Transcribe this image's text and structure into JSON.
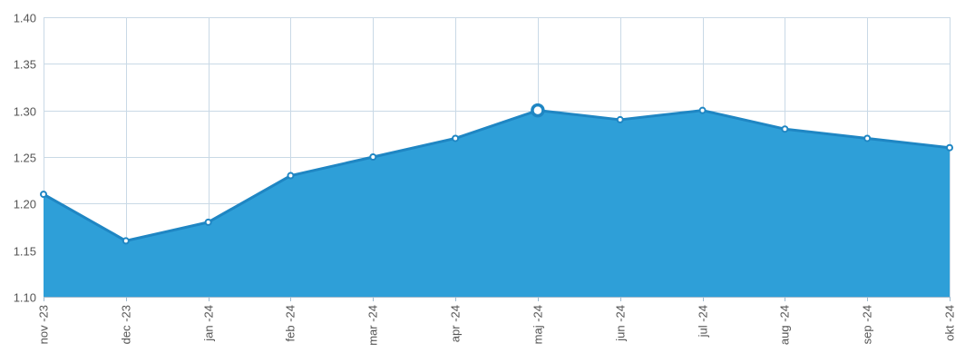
{
  "chart_data": {
    "type": "area",
    "title": "",
    "xlabel": "",
    "ylabel": "",
    "categories": [
      "nov -23",
      "dec -23",
      "jan -24",
      "feb -24",
      "mar -24",
      "apr -24",
      "maj -24",
      "jun -24",
      "jul -24",
      "aug -24",
      "sep -24",
      "okt -24"
    ],
    "series": [
      {
        "values": [
          1.21,
          1.16,
          1.18,
          1.23,
          1.25,
          1.27,
          1.3,
          1.29,
          1.3,
          1.28,
          1.27,
          1.26
        ]
      }
    ],
    "ylim": [
      1.1,
      1.4
    ],
    "yticks": [
      "1.10",
      "1.15",
      "1.20",
      "1.25",
      "1.30",
      "1.35",
      "1.40"
    ],
    "highlight_category": "maj -24",
    "grid": true,
    "legend": "none",
    "colors": {
      "area": "#2e9fd8",
      "line": "#1f86c3",
      "grid": "#c9d9e6"
    }
  }
}
